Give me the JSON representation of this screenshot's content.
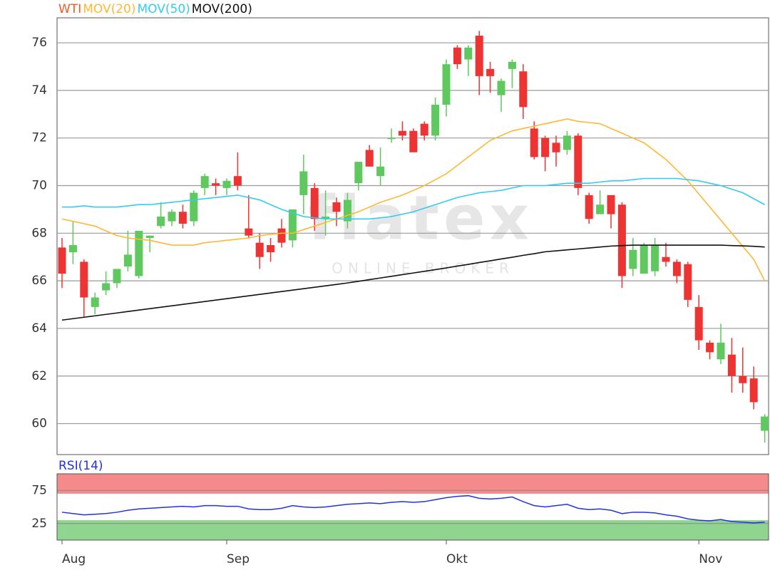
{
  "chart_data": [
    {
      "type": "candlestick",
      "name": "WTI",
      "name_color": "#f05a28",
      "categories": [
        "Aug",
        null,
        null,
        null,
        null,
        null,
        null,
        null,
        null,
        null,
        null,
        null,
        null,
        null,
        null,
        "Sep",
        null,
        null,
        null,
        null,
        null,
        null,
        null,
        null,
        null,
        null,
        null,
        null,
        null,
        null,
        null,
        null,
        null,
        null,
        null,
        "Okt",
        null,
        null,
        null,
        null,
        null,
        null,
        null,
        null,
        null,
        null,
        null,
        null,
        null,
        null,
        null,
        null,
        null,
        null,
        null,
        null,
        null,
        null,
        "Nov",
        null,
        null,
        null,
        null,
        null,
        null
      ],
      "open": [
        67.4,
        67.2,
        66.8,
        64.9,
        65.6,
        65.9,
        66.6,
        66.2,
        67.8,
        68.3,
        68.5,
        68.9,
        68.5,
        69.9,
        70.1,
        69.9,
        70.4,
        68.2,
        67.6,
        67.5,
        68.2,
        67.7,
        69.6,
        69.9,
        68.6,
        69.3,
        68.5,
        70.1,
        71.5,
        70.4,
        72.0,
        72.3,
        72.3,
        72.6,
        72.1,
        73.4,
        75.8,
        75.3,
        76.3,
        74.9,
        73.8,
        74.9,
        74.8,
        72.4,
        72.0,
        71.8,
        71.5,
        72.1,
        69.6,
        68.8,
        69.6,
        69.2,
        66.5,
        66.3,
        66.4,
        67.0,
        66.8,
        66.7,
        64.9,
        63.4,
        62.7,
        62.9,
        62.0,
        61.9,
        59.7
      ],
      "high": [
        67.8,
        68.5,
        66.9,
        65.5,
        66.4,
        66.5,
        68.1,
        68.1,
        67.9,
        69.3,
        69.0,
        69.2,
        69.8,
        70.5,
        70.3,
        70.3,
        71.4,
        69.6,
        68.0,
        67.8,
        68.6,
        69.0,
        71.3,
        70.1,
        69.8,
        69.5,
        69.7,
        71.0,
        71.7,
        71.6,
        72.4,
        72.7,
        72.4,
        72.7,
        73.7,
        75.3,
        75.9,
        75.9,
        76.5,
        75.2,
        74.5,
        75.3,
        75.1,
        72.7,
        72.1,
        72.1,
        72.3,
        72.2,
        69.7,
        69.8,
        69.6,
        69.3,
        67.8,
        67.6,
        67.8,
        67.6,
        66.9,
        66.8,
        65.4,
        63.5,
        64.2,
        63.6,
        63.2,
        62.4,
        60.4
      ],
      "low": [
        65.7,
        66.7,
        64.5,
        64.6,
        65.4,
        65.7,
        66.4,
        66.1,
        67.2,
        68.2,
        68.3,
        68.2,
        68.3,
        69.6,
        69.6,
        69.6,
        69.8,
        67.8,
        66.5,
        66.8,
        67.4,
        67.4,
        68.8,
        68.1,
        67.9,
        68.3,
        68.2,
        69.8,
        70.8,
        70.0,
        71.8,
        71.9,
        71.4,
        71.9,
        71.9,
        72.9,
        74.9,
        74.6,
        73.8,
        73.9,
        73.1,
        74.1,
        72.8,
        71.1,
        70.6,
        70.8,
        71.3,
        69.6,
        68.4,
        68.8,
        68.2,
        65.7,
        66.2,
        66.3,
        66.2,
        66.6,
        65.9,
        64.9,
        63.1,
        62.7,
        62.5,
        61.3,
        61.3,
        60.6,
        59.2
      ],
      "close": [
        66.3,
        67.5,
        65.3,
        65.3,
        65.9,
        66.5,
        67.1,
        68.1,
        67.9,
        68.7,
        68.9,
        68.4,
        69.7,
        70.4,
        70.0,
        70.2,
        70.0,
        67.9,
        67.0,
        67.2,
        67.6,
        69.0,
        70.6,
        68.6,
        68.7,
        68.9,
        69.4,
        71.0,
        70.8,
        70.8,
        72.0,
        72.1,
        71.4,
        72.1,
        73.4,
        75.1,
        75.1,
        75.8,
        74.6,
        74.6,
        74.4,
        75.2,
        73.3,
        71.2,
        71.2,
        71.4,
        72.1,
        69.9,
        68.6,
        69.2,
        68.8,
        66.2,
        67.3,
        67.5,
        67.5,
        66.8,
        66.2,
        65.2,
        63.5,
        63.0,
        63.4,
        62.0,
        61.7,
        60.9,
        60.3
      ],
      "up_color": "#5fc95f",
      "down_color": "#ee3333",
      "series": [
        {
          "name": "MOV(20)",
          "color": "#ffb833",
          "values": [
            68.6,
            68.5,
            68.4,
            68.3,
            68.1,
            67.9,
            67.8,
            67.75,
            67.7,
            67.6,
            67.5,
            67.5,
            67.5,
            67.6,
            67.65,
            67.7,
            67.75,
            67.8,
            67.9,
            67.95,
            68.0,
            68.0,
            68.15,
            68.3,
            68.45,
            68.6,
            68.75,
            68.9,
            69.1,
            69.3,
            69.45,
            69.6,
            69.8,
            70.0,
            70.25,
            70.5,
            70.85,
            71.2,
            71.55,
            71.9,
            72.1,
            72.3,
            72.4,
            72.5,
            72.6,
            72.7,
            72.8,
            72.7,
            72.65,
            72.6,
            72.4,
            72.2,
            72.0,
            71.8,
            71.45,
            71.1,
            70.65,
            70.2,
            69.65,
            69.1,
            68.55,
            68.0,
            67.45,
            66.9,
            66.0
          ]
        },
        {
          "name": "MOV(50)",
          "color": "#33ccf0",
          "values": [
            69.1,
            69.1,
            69.15,
            69.1,
            69.1,
            69.1,
            69.15,
            69.2,
            69.2,
            69.25,
            69.3,
            69.35,
            69.4,
            69.45,
            69.5,
            69.55,
            69.6,
            69.5,
            69.4,
            69.2,
            69.0,
            68.85,
            68.7,
            68.65,
            68.6,
            68.6,
            68.6,
            68.6,
            68.6,
            68.65,
            68.7,
            68.8,
            68.9,
            69.05,
            69.2,
            69.35,
            69.5,
            69.6,
            69.7,
            69.75,
            69.8,
            69.9,
            70.0,
            70.0,
            70.0,
            70.05,
            70.1,
            70.1,
            70.1,
            70.15,
            70.2,
            70.2,
            70.25,
            70.3,
            70.3,
            70.3,
            70.3,
            70.25,
            70.2,
            70.1,
            70.0,
            69.85,
            69.7,
            69.45,
            69.2
          ]
        },
        {
          "name": "MOV(200)",
          "color": "#111111",
          "values": [
            64.35,
            64.41,
            64.47,
            64.53,
            64.59,
            64.65,
            64.71,
            64.77,
            64.83,
            64.89,
            64.95,
            65.01,
            65.07,
            65.13,
            65.19,
            65.25,
            65.31,
            65.37,
            65.43,
            65.49,
            65.55,
            65.61,
            65.67,
            65.73,
            65.79,
            65.85,
            65.91,
            65.98,
            66.05,
            66.12,
            66.19,
            66.26,
            66.33,
            66.4,
            66.47,
            66.54,
            66.62,
            66.69,
            66.77,
            66.84,
            66.92,
            66.99,
            67.07,
            67.14,
            67.22,
            67.26,
            67.3,
            67.34,
            67.38,
            67.42,
            67.46,
            67.48,
            67.5,
            67.5,
            67.5,
            67.5,
            67.5,
            67.5,
            67.5,
            67.5,
            67.5,
            67.48,
            67.47,
            67.45,
            67.42
          ]
        }
      ],
      "ylim": [
        58.7,
        77.05
      ],
      "yticks": [
        60,
        62,
        64,
        66,
        68,
        70,
        72,
        74,
        76
      ],
      "grid": true,
      "watermark": {
        "title": "flatex",
        "subtitle": "ONLINE BROKER"
      }
    },
    {
      "type": "line",
      "series": [
        {
          "name": "RSI(14)",
          "color": "#2233dd",
          "values": [
            42,
            40,
            38,
            39,
            40,
            42,
            45,
            47,
            48,
            49,
            50,
            51,
            50,
            52,
            52,
            51,
            51,
            47,
            46,
            46,
            48,
            52,
            50,
            49,
            50,
            52,
            54,
            55,
            56,
            55,
            57,
            58,
            57,
            58,
            61,
            64,
            66,
            67,
            63,
            62,
            63,
            65,
            58,
            52,
            50,
            52,
            54,
            48,
            46,
            47,
            45,
            40,
            42,
            42,
            41,
            38,
            36,
            32,
            30,
            29,
            31,
            28,
            27,
            26,
            27
          ]
        }
      ],
      "bands": [
        {
          "from": 70,
          "to": 100,
          "color": "#f58a8a"
        },
        {
          "from": 0,
          "to": 30,
          "color": "#8fd48f"
        }
      ],
      "ylim": [
        0,
        100
      ],
      "yticks": [
        25,
        75
      ],
      "grid": true
    }
  ]
}
